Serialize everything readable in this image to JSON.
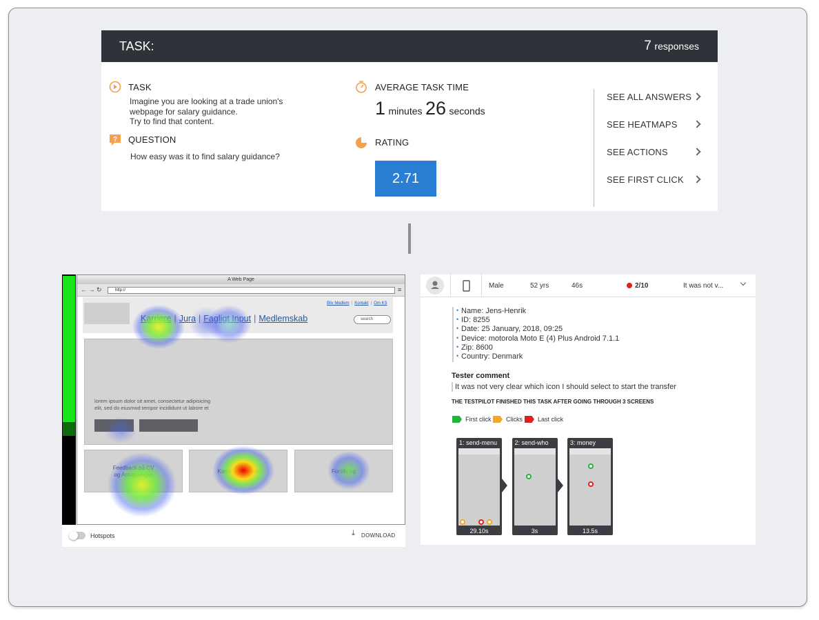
{
  "task_card": {
    "title": "TASK:",
    "responses_count": 7,
    "responses_label": "responses",
    "task_label": "TASK",
    "task_text": [
      "Imagine you are looking at a trade union's",
      "webpage for salary guidance.",
      "Try to find that content."
    ],
    "question_label": "QUESTION",
    "question_text": "How easy was it to find salary guidance?",
    "time_label": "AVERAGE TASK TIME",
    "minutes": 1,
    "minutes_unit": "minutes",
    "seconds": 26,
    "seconds_unit": "seconds",
    "rating_label": "RATING",
    "rating": 2.71,
    "links": [
      "SEE ALL ANSWERS",
      "SEE HEATMAPS",
      "SEE ACTIONS",
      "SEE FIRST CLICK"
    ]
  },
  "heatmap": {
    "browser_title": "A Web Page",
    "url": "http://",
    "top_links": [
      "Bliv Medlem",
      "Kontakt",
      "Om KS"
    ],
    "nav": [
      "Karriere",
      "Jura",
      "Fagligt Input",
      "Medlemskab"
    ],
    "search": "search",
    "hero_text": [
      "lorem ipsum dolor sit amet, consectetur adipisicing",
      "elit, sed do eiusmod tempor incididunt ut labore et"
    ],
    "tiles": [
      [
        "Feedback på CV",
        "og Ansøgninger"
      ],
      [
        "Karriere Samtale"
      ],
      [
        "Forsikring"
      ]
    ],
    "hotspots_label": "Hotspots",
    "download_label": "DOWNLOAD"
  },
  "response": {
    "gender": "Male",
    "age": "52 yrs",
    "duration": "46s",
    "rating": "2/10",
    "comment_short": "It was not v...",
    "details": [
      "Name: Jens-Henrik",
      "ID: 8255",
      "Date: 25 January, 2018, 09:25",
      "Device: motorola Moto E (4) Plus Android 7.1.1",
      "Zip: 8600",
      "Country: Denmark"
    ],
    "comment_title": "Tester comment",
    "comment": "It was not very clear which icon I should select to start the transfer",
    "summary": "THE TESTPILOT FINISHED THIS TASK AFTER GOING THROUGH 3 SCREENS",
    "legend": [
      "First click",
      "Clicks",
      "Last click"
    ],
    "screens": [
      {
        "name": "1: send-menu",
        "time": "29.10s"
      },
      {
        "name": "2: send-who",
        "time": "3s"
      },
      {
        "name": "3: money",
        "time": "13.5s"
      }
    ]
  }
}
